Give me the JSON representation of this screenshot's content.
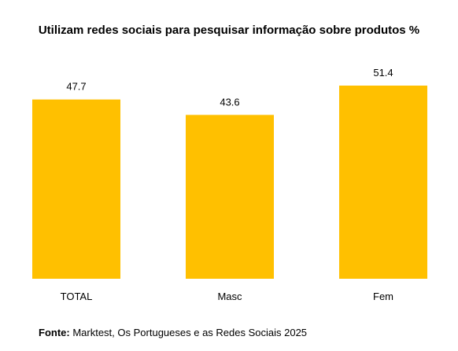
{
  "chart_data": {
    "type": "bar",
    "title": "Utilizam redes sociais para pesquisar informação sobre produtos %",
    "categories": [
      "TOTAL",
      "Masc",
      "Fem"
    ],
    "values": [
      47.7,
      43.6,
      51.4
    ],
    "value_labels": [
      "47.7",
      "43.6",
      "51.4"
    ],
    "xlabel": "",
    "ylabel": "",
    "ylim": [
      0,
      51.4
    ],
    "grid": false,
    "legend": "none",
    "bar_color": "#FFC000"
  },
  "source": {
    "prefix": "Fonte:",
    "text": " Marktest, Os Portugueses e as Redes Sociais 2025"
  }
}
